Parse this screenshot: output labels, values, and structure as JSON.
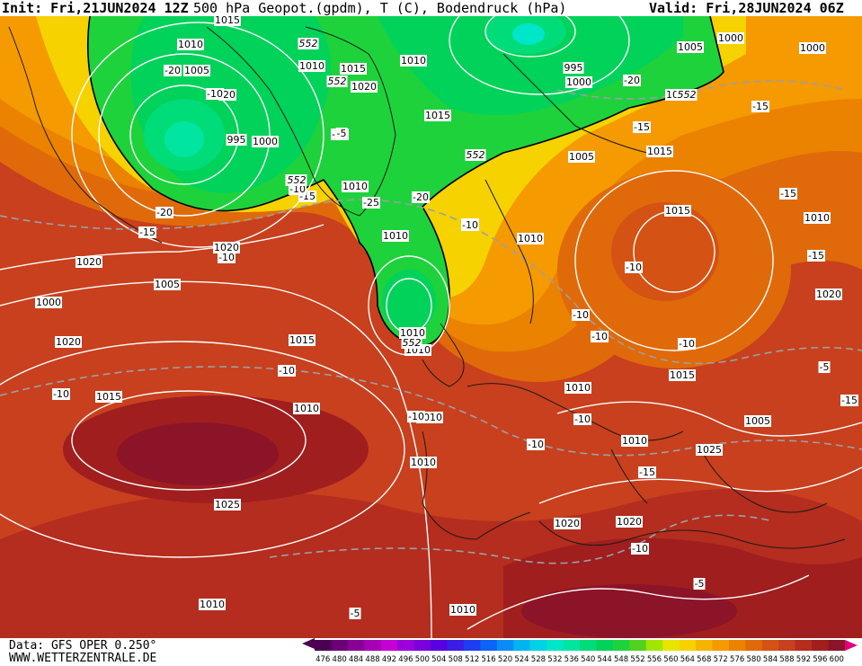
{
  "header": {
    "init": "Init: Fri,21JUN2024 12Z",
    "product": "500 hPa Geopot.(gpdm), T (C), Bodendruck (hPa)",
    "valid": "Valid: Fri,28JUN2024 06Z"
  },
  "footer": {
    "data_source": "Data: GFS OPER 0.250°",
    "website": "WWW.WETTERZENTRALE.DE"
  },
  "legend": {
    "levels": [
      "476",
      "480",
      "484",
      "488",
      "492",
      "496",
      "500",
      "504",
      "508",
      "512",
      "516",
      "520",
      "524",
      "528",
      "532",
      "536",
      "540",
      "544",
      "548",
      "552",
      "556",
      "560",
      "564",
      "568",
      "572",
      "576",
      "580",
      "584",
      "588",
      "592",
      "596",
      "600"
    ],
    "colors": [
      "#4b0052",
      "#6b0078",
      "#8a0096",
      "#a700b4",
      "#c400d2",
      "#9c00d8",
      "#7a00dc",
      "#5800e0",
      "#3a1ee6",
      "#1e3cf0",
      "#0a64f5",
      "#0a8cf5",
      "#00b4f0",
      "#00d2e6",
      "#00e6c8",
      "#00e6a0",
      "#00dc78",
      "#00d25a",
      "#1ed23c",
      "#50d21e",
      "#a0e600",
      "#e6e600",
      "#f5d200",
      "#f5b400",
      "#f59a00",
      "#eb8200",
      "#e06a0a",
      "#d45214",
      "#c8401e",
      "#b42d1e",
      "#a01e1e",
      "#8c1428"
    ]
  },
  "map": {
    "height_contour_labels": [
      "552",
      "552",
      "552",
      "552",
      "552",
      "552",
      "552"
    ],
    "pressure_labels": [
      "1015",
      "1010",
      "1005",
      "1010",
      "1015",
      "1020",
      "1010",
      "1015",
      "1010",
      "1010",
      "995",
      "1000",
      "995",
      "1000",
      "1005",
      "1000",
      "1000",
      "1010",
      "1015",
      "1005",
      "1010",
      "1015",
      "1010",
      "1020",
      "1010",
      "1010",
      "1015",
      "1010",
      "1010",
      "1020",
      "1000",
      "1005",
      "1020",
      "1015",
      "1020",
      "1025",
      "1010",
      "1010",
      "1005",
      "1020",
      "1010",
      "1015",
      "1010",
      "1025",
      "1020",
      "1010"
    ],
    "temperature_labels": [
      "-20",
      "-20",
      "-20",
      "-25",
      "-15",
      "-20",
      "-20",
      "-15",
      "-15",
      "-15",
      "-15",
      "-20",
      "-10",
      "-15",
      "-10",
      "-15",
      "-10",
      "-10",
      "-10",
      "-10",
      "-10",
      "-10",
      "-10",
      "-10",
      "-5",
      "-15",
      "-10",
      "-5",
      "-5",
      "-10",
      "-10",
      "-5",
      "-10",
      "-15"
    ]
  }
}
